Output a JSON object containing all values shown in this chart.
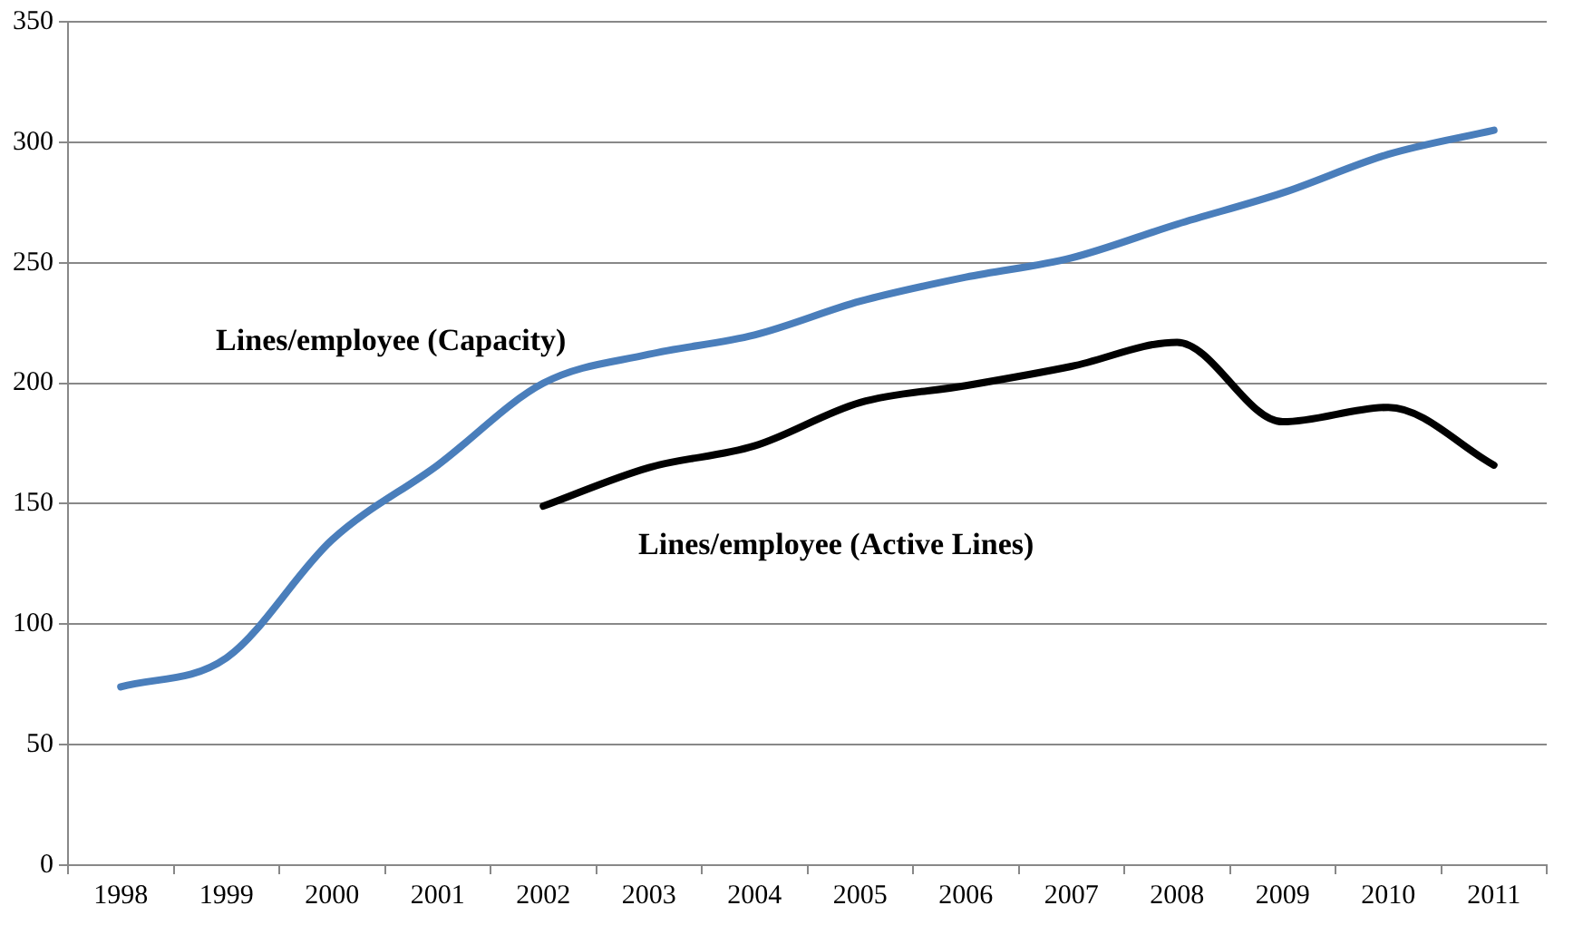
{
  "chart_data": {
    "type": "line",
    "categories": [
      "1998",
      "1999",
      "2000",
      "2001",
      "2002",
      "2003",
      "2004",
      "2005",
      "2006",
      "2007",
      "2008",
      "2009",
      "2010",
      "2011"
    ],
    "series": [
      {
        "name": "Lines/employee (Capacity)",
        "color": "#4a7ebb",
        "values": [
          74,
          86,
          135,
          166,
          200,
          212,
          220,
          234,
          244,
          252,
          266,
          279,
          295,
          305
        ]
      },
      {
        "name": "Lines/employee (Active Lines)",
        "color": "#000000",
        "values": [
          null,
          null,
          null,
          null,
          149,
          165,
          174,
          192,
          199,
          207,
          217,
          184,
          190,
          166
        ]
      }
    ],
    "ylim": [
      0,
      350
    ],
    "yticks": [
      0,
      50,
      100,
      150,
      200,
      250,
      300,
      350
    ],
    "grid": "y",
    "legend": false,
    "marker": "none",
    "line_style": "solid"
  }
}
